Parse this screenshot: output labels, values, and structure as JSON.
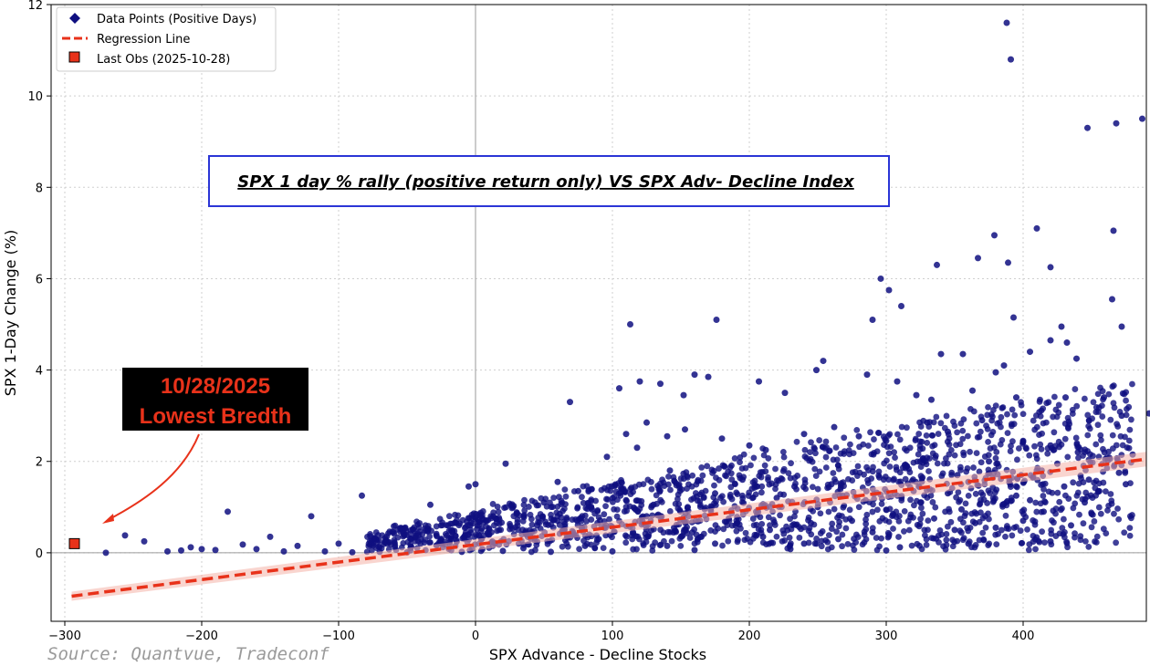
{
  "chart_data": {
    "type": "scatter",
    "title": "SPX 1 day % rally (positive return only) VS SPX Adv- Decline Index",
    "xlabel": "SPX Advance - Decline Stocks",
    "ylabel": "SPX 1-Day Change (%)",
    "xlim": [
      -310,
      490
    ],
    "ylim": [
      -1.5,
      12
    ],
    "xticks": [
      -300,
      -200,
      -100,
      0,
      100,
      200,
      300,
      400
    ],
    "xtick_labels": [
      "−300",
      "−200",
      "−100",
      "0",
      "100",
      "200",
      "300",
      "400"
    ],
    "yticks": [
      0,
      2,
      4,
      6,
      8,
      10,
      12
    ],
    "ytick_labels": [
      "0",
      "2",
      "4",
      "6",
      "8",
      "10",
      "12"
    ],
    "grid": true,
    "reference_lines": {
      "x": 0,
      "y": 0
    },
    "legend": {
      "position": "top-left",
      "entries": [
        {
          "label": "Data Points (Positive Days)",
          "marker": "diamond",
          "color": "#0f0f80"
        },
        {
          "label": "Regression Line",
          "style": "dashed",
          "color": "#e8321a"
        },
        {
          "label": "Last Obs (2025-10-28)",
          "marker": "square",
          "color": "#e8321a"
        }
      ]
    },
    "series": [
      {
        "name": "Data Points (Positive Days)",
        "color": "#0f0f80",
        "points": [
          [
            388,
            11.6
          ],
          [
            391,
            10.8
          ],
          [
            487,
            9.5
          ],
          [
            468,
            9.4
          ],
          [
            447,
            9.3
          ],
          [
            410,
            7.1
          ],
          [
            466,
            7.05
          ],
          [
            379,
            6.95
          ],
          [
            389,
            6.35
          ],
          [
            367,
            6.45
          ],
          [
            420,
            6.25
          ],
          [
            296,
            6.0
          ],
          [
            302,
            5.75
          ],
          [
            311,
            5.4
          ],
          [
            337,
            6.3
          ],
          [
            465,
            5.55
          ],
          [
            472,
            4.95
          ],
          [
            393,
            5.15
          ],
          [
            113,
            5.0
          ],
          [
            176,
            5.1
          ],
          [
            290,
            5.1
          ],
          [
            340,
            4.35
          ],
          [
            356,
            4.35
          ],
          [
            386,
            4.1
          ],
          [
            405,
            4.4
          ],
          [
            420,
            4.65
          ],
          [
            428,
            4.95
          ],
          [
            432,
            4.6
          ],
          [
            439,
            4.25
          ],
          [
            254,
            4.2
          ],
          [
            160,
            3.9
          ],
          [
            170,
            3.85
          ],
          [
            249,
            4.0
          ],
          [
            69,
            3.3
          ],
          [
            105,
            3.6
          ],
          [
            120,
            3.75
          ],
          [
            135,
            3.7
          ],
          [
            152,
            3.45
          ],
          [
            207,
            3.75
          ],
          [
            226,
            3.5
          ],
          [
            286,
            3.9
          ],
          [
            333,
            3.35
          ],
          [
            322,
            3.45
          ],
          [
            308,
            3.75
          ],
          [
            363,
            3.55
          ],
          [
            380,
            3.95
          ],
          [
            395,
            3.4
          ],
          [
            431,
            3.4
          ],
          [
            459,
            3.4
          ],
          [
            472,
            3.0
          ],
          [
            492,
            3.05
          ],
          [
            -181,
            0.9
          ],
          [
            -83,
            1.25
          ],
          [
            -120,
            0.8
          ],
          [
            -33,
            1.05
          ],
          [
            -5,
            1.45
          ],
          [
            0,
            1.5
          ],
          [
            22,
            1.95
          ],
          [
            60,
            1.55
          ],
          [
            96,
            2.1
          ],
          [
            110,
            2.6
          ],
          [
            118,
            2.3
          ],
          [
            125,
            2.85
          ],
          [
            140,
            2.55
          ],
          [
            153,
            2.7
          ],
          [
            180,
            2.5
          ],
          [
            200,
            2.35
          ],
          [
            212,
            2.25
          ],
          [
            240,
            2.6
          ],
          [
            262,
            2.75
          ],
          [
            280,
            2.55
          ],
          [
            300,
            2.45
          ],
          [
            330,
            2.85
          ],
          [
            345,
            2.65
          ],
          [
            370,
            2.9
          ],
          [
            400,
            2.45
          ],
          [
            420,
            2.35
          ],
          [
            440,
            2.2
          ],
          [
            460,
            2.05
          ],
          [
            480,
            2.15
          ],
          [
            50,
            1.1
          ],
          [
            75,
            1.35
          ],
          [
            142,
            1.8
          ],
          [
            195,
            1.6
          ],
          [
            233,
            1.45
          ],
          [
            268,
            1.25
          ],
          [
            315,
            1.9
          ],
          [
            352,
            1.7
          ],
          [
            375,
            2.0
          ],
          [
            410,
            1.8
          ],
          [
            448,
            1.6
          ],
          [
            30,
            0.85
          ],
          [
            85,
            0.95
          ],
          [
            130,
            1.05
          ],
          [
            175,
            1.3
          ],
          [
            205,
            0.9
          ],
          [
            250,
            1.0
          ],
          [
            285,
            1.15
          ],
          [
            320,
            1.35
          ],
          [
            360,
            1.55
          ],
          [
            395,
            1.25
          ],
          [
            430,
            1.45
          ],
          [
            470,
            1.75
          ],
          [
            -150,
            0.35
          ],
          [
            -130,
            0.15
          ],
          [
            -100,
            0.2
          ],
          [
            -60,
            0.45
          ],
          [
            -40,
            0.3
          ],
          [
            -20,
            0.6
          ],
          [
            10,
            0.4
          ],
          [
            40,
            0.35
          ],
          [
            65,
            0.5
          ],
          [
            90,
            0.3
          ],
          [
            115,
            0.45
          ],
          [
            145,
            0.55
          ],
          [
            165,
            0.35
          ],
          [
            190,
            0.6
          ],
          [
            215,
            0.5
          ],
          [
            245,
            0.65
          ],
          [
            275,
            0.7
          ],
          [
            305,
            0.85
          ],
          [
            335,
            0.75
          ],
          [
            355,
            0.95
          ],
          [
            385,
            1.05
          ],
          [
            415,
            0.9
          ],
          [
            445,
            1.1
          ],
          [
            300,
            0.05
          ],
          [
            -270,
            0.0
          ],
          [
            -256,
            0.38
          ],
          [
            -242,
            0.25
          ],
          [
            -225,
            0.03
          ],
          [
            -215,
            0.05
          ],
          [
            -208,
            0.12
          ],
          [
            -200,
            0.08
          ],
          [
            -190,
            0.06
          ],
          [
            -170,
            0.18
          ],
          [
            -160,
            0.08
          ],
          [
            -140,
            0.03
          ],
          [
            -110,
            0.03
          ],
          [
            -90,
            0.01
          ],
          [
            -70,
            0.02
          ],
          [
            -50,
            0.01
          ],
          [
            -10,
            0.02
          ],
          [
            20,
            0.04
          ],
          [
            55,
            0.02
          ],
          [
            100,
            0.03
          ],
          [
            160,
            0.06
          ],
          [
            230,
            0.08
          ],
          [
            310,
            0.12
          ],
          [
            360,
            0.2
          ],
          [
            420,
            0.25
          ],
          [
            380,
            0.55
          ],
          [
            400,
            0.7
          ],
          [
            450,
            0.85
          ],
          [
            265,
            0.3
          ],
          [
            175,
            0.2
          ],
          [
            80,
            0.15
          ],
          [
            35,
            0.1
          ],
          [
            5,
            0.08
          ],
          [
            -25,
            0.2
          ],
          [
            -5,
            0.4
          ],
          [
            125,
            0.8
          ],
          [
            155,
            1.0
          ],
          [
            185,
            0.75
          ],
          [
            220,
            1.2
          ],
          [
            260,
            1.5
          ],
          [
            295,
            1.65
          ],
          [
            325,
            1.1
          ],
          [
            345,
            1.3
          ],
          [
            365,
            0.65
          ],
          [
            390,
            1.6
          ],
          [
            405,
            1.15
          ],
          [
            425,
            1.95
          ],
          [
            455,
            1.35
          ],
          [
            475,
            1.5
          ],
          [
            140,
            0.15
          ],
          [
            210,
            0.35
          ],
          [
            240,
            0.2
          ],
          [
            290,
            0.45
          ],
          [
            350,
            0.5
          ],
          [
            435,
            0.6
          ],
          [
            60,
            0.7
          ],
          [
            110,
            1.15
          ],
          [
            95,
            0.55
          ],
          [
            45,
            0.6
          ]
        ]
      },
      {
        "name": "Regression Line",
        "color": "#e8321a",
        "line": [
          [
            -295,
            -0.95
          ],
          [
            490,
            2.05
          ]
        ]
      },
      {
        "name": "Last Obs (2025-10-28)",
        "color": "#e8321a",
        "points": [
          [
            -293,
            0.2
          ]
        ]
      }
    ],
    "annotations": [
      {
        "text_line1": "10/28/2025",
        "text_line2": "Lowest Bredth",
        "arrow_to": [
          -275,
          0.6
        ]
      }
    ],
    "source": "Source: Quantvue, Tradeconf"
  }
}
